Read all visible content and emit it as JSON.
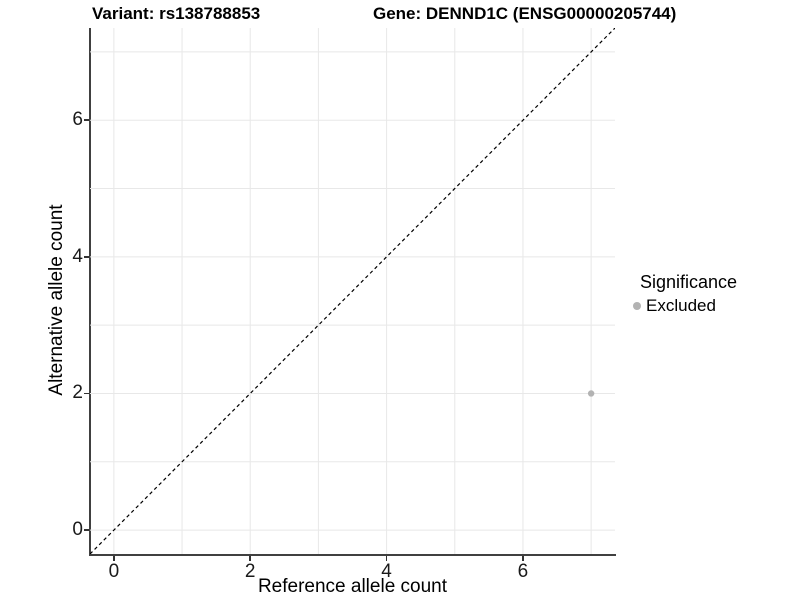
{
  "title": {
    "variant": "Variant: rs138788853",
    "gene": "Gene: DENND1C (ENSG00000205744)"
  },
  "chart_data": {
    "type": "scatter",
    "xlabel": "Reference allele count",
    "ylabel": "Alternative allele count",
    "xlim": [
      -0.35,
      7.35
    ],
    "ylim": [
      -0.35,
      7.35
    ],
    "xticks": [
      0,
      2,
      4,
      6
    ],
    "yticks": [
      0,
      2,
      4,
      6
    ],
    "grid_x": [
      0,
      1,
      2,
      3,
      4,
      5,
      6,
      7
    ],
    "grid_y": [
      0,
      1,
      2,
      3,
      4,
      5,
      6,
      7
    ],
    "grid_on": true,
    "identity_line": {
      "equation": "y = x",
      "style": "dashed",
      "color": "#000000"
    },
    "series": [
      {
        "name": "Excluded",
        "color": "#b3b3b3",
        "points": [
          {
            "x": 7,
            "y": 2
          }
        ]
      }
    ],
    "legend": {
      "title": "Significance",
      "position": "right",
      "items": [
        {
          "label": "Excluded",
          "color": "#b3b3b3"
        }
      ]
    }
  },
  "colors": {
    "axis": "#404040",
    "grid": "#e8e8e8",
    "tick": "#333333",
    "dashed_line": "#000000",
    "point": "#b3b3b3"
  }
}
